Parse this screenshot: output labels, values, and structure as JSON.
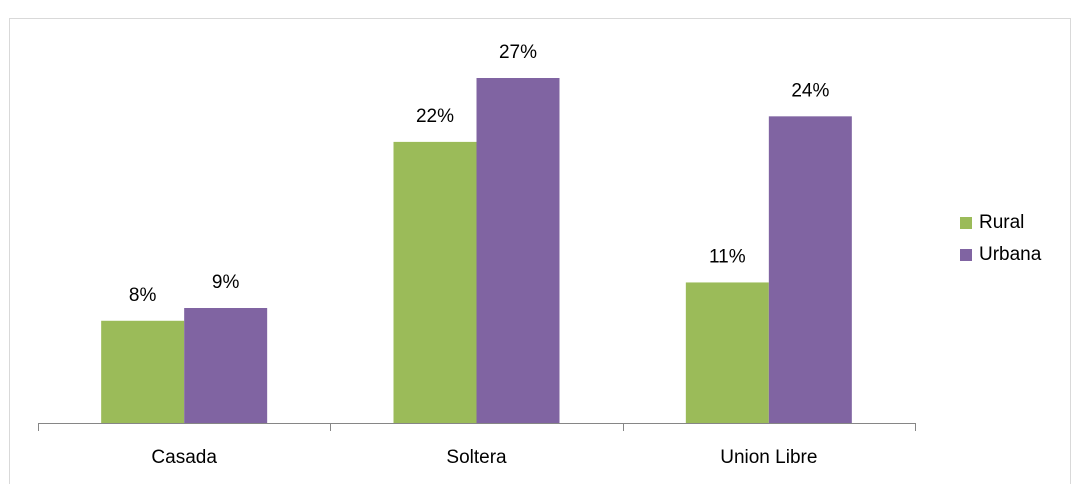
{
  "chart_data": {
    "type": "bar",
    "categories": [
      "Casada",
      "Soltera",
      "Union Libre"
    ],
    "series": [
      {
        "name": "Rural",
        "color": "#9bbb59",
        "values": [
          8,
          22,
          11
        ],
        "value_labels": [
          "8%",
          "22%",
          "11%"
        ]
      },
      {
        "name": "Urbana",
        "color": "#8064a2",
        "values": [
          9,
          27,
          24
        ],
        "value_labels": [
          "9%",
          "27%",
          "24%"
        ]
      }
    ],
    "legend": "right"
  }
}
